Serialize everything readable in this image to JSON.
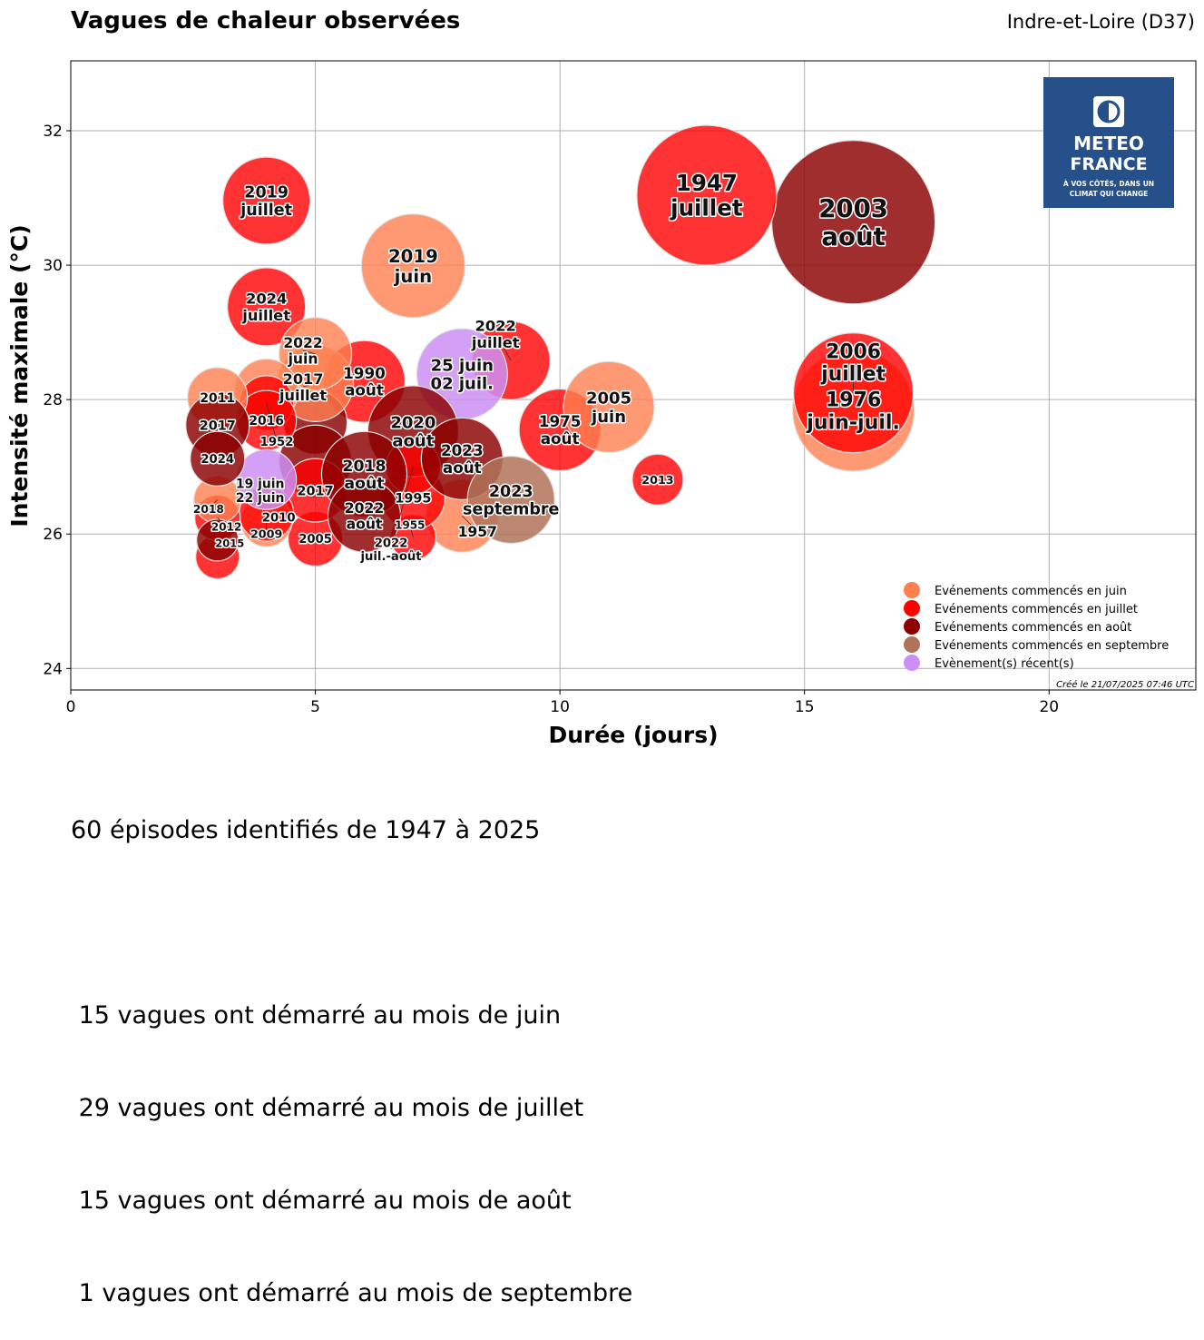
{
  "header": {
    "title": "Vagues de chaleur observées",
    "department": "Indre-et-Loire (D37)"
  },
  "logo": {
    "line1": "METEO",
    "line2": "FRANCE",
    "tagline1": "À VOS CÔTÉS, DANS UN",
    "tagline2": "CLIMAT QUI CHANGE",
    "bg": "#265089"
  },
  "created": "Créé le 21/07/2025 07:46 UTC",
  "summary": {
    "headline": "60 épisodes identifiés de 1947 à 2025",
    "lines": [
      " 15 vagues ont démarré au mois de juin",
      " 29 vagues ont démarré au mois de juillet",
      " 15 vagues ont démarré au mois de août",
      " 1 vagues ont démarré au mois de septembre"
    ]
  },
  "chart_data": {
    "type": "scatter",
    "subtype": "bubble",
    "xlabel": "Durée (jours)",
    "ylabel": "Intensité maximale (°C)",
    "xlim": [
      0,
      23
    ],
    "ylim": [
      23.68,
      33.04
    ],
    "xticks": [
      0,
      5,
      10,
      15,
      20
    ],
    "yticks": [
      24,
      26,
      28,
      30,
      32
    ],
    "grid": true,
    "legend_position": "bottom-right",
    "categories": {
      "juin": {
        "label": "Evénements commencés en juin",
        "color": "#ff7f50"
      },
      "juillet": {
        "label": "Evénements commencés en juillet",
        "color": "#ff0000"
      },
      "aout": {
        "label": "Evénements commencés en août",
        "color": "#8b0000"
      },
      "septembre": {
        "label": "Evénements commencés en septembre",
        "color": "#b07359"
      },
      "recent": {
        "label": "Evènement(s) récent(s)",
        "color": "#cc8ff5"
      }
    },
    "legend_order": [
      "juin",
      "juillet",
      "aout",
      "septembre",
      "recent"
    ],
    "points": [
      {
        "x": 16,
        "y": 27.84,
        "severity": 6.7,
        "cat": "juin",
        "label": [
          "1976",
          "juin-juil."
        ]
      },
      {
        "x": 16,
        "y": 30.64,
        "severity": 9.0,
        "cat": "aout",
        "label": [
          "2003",
          "août"
        ]
      },
      {
        "x": 13,
        "y": 31.04,
        "severity": 7.7,
        "cat": "juillet",
        "label": [
          "1947",
          "juillet"
        ]
      },
      {
        "x": 16,
        "y": 28.1,
        "severity": 6.6,
        "cat": "juillet",
        "label": [
          "2006",
          "juillet"
        ]
      },
      {
        "x": 4,
        "y": 30.96,
        "severity": 4.8,
        "cat": "juillet",
        "label": [
          "2019",
          "juillet"
        ]
      },
      {
        "x": 7,
        "y": 29.99,
        "severity": 5.7,
        "cat": "juin",
        "label": [
          "2019",
          "juin"
        ]
      },
      {
        "x": 4,
        "y": 29.38,
        "severity": 4.3,
        "cat": "juillet",
        "label": [
          "2024",
          "juillet"
        ]
      },
      {
        "x": 6,
        "y": 28.27,
        "severity": 4.5,
        "cat": "juillet",
        "label": [
          "1990",
          "août"
        ]
      },
      {
        "x": 5,
        "y": 27.66,
        "severity": 3.5,
        "cat": "aout",
        "label": []
      },
      {
        "x": 5,
        "y": 28.24,
        "severity": 4.2,
        "cat": "juin",
        "label": [
          "2017",
          "juillet"
        ]
      },
      {
        "x": 5,
        "y": 28.68,
        "severity": 4.0,
        "cat": "juin",
        "label": [
          "2022",
          "juin"
        ]
      },
      {
        "x": 9,
        "y": 28.58,
        "severity": 4.3,
        "cat": "juillet",
        "label": [
          "2022",
          "juillet"
        ]
      },
      {
        "x": 8,
        "y": 28.38,
        "severity": 5.0,
        "cat": "recent",
        "label": [
          "25 juin",
          "02 juil."
        ]
      },
      {
        "x": 10,
        "y": 27.55,
        "severity": 4.5,
        "cat": "juillet",
        "label": [
          "1975",
          "août"
        ]
      },
      {
        "x": 11,
        "y": 27.89,
        "severity": 5.0,
        "cat": "juin",
        "label": [
          "2005",
          "juin"
        ]
      },
      {
        "x": 12,
        "y": 26.81,
        "severity": 2.8,
        "cat": "juillet",
        "label": [
          "2013"
        ]
      },
      {
        "x": 8,
        "y": 26.27,
        "severity": 4.0,
        "cat": "juin",
        "label": [
          "1957"
        ]
      },
      {
        "x": 7,
        "y": 25.95,
        "severity": 2.5,
        "cat": "juillet",
        "label": [
          "1955"
        ]
      },
      {
        "x": 7,
        "y": 26.54,
        "severity": 3.5,
        "cat": "juillet",
        "label": [
          "1995"
        ]
      },
      {
        "x": 7,
        "y": 27.53,
        "severity": 5.0,
        "cat": "aout",
        "label": [
          "2020",
          "août"
        ]
      },
      {
        "x": 7,
        "y": 27.0,
        "severity": 3.0,
        "cat": "juillet",
        "label": [
          "2022",
          "juil.-août"
        ]
      },
      {
        "x": 8,
        "y": 27.12,
        "severity": 4.5,
        "cat": "aout",
        "label": [
          "2023",
          "août"
        ]
      },
      {
        "x": 9,
        "y": 26.51,
        "severity": 4.8,
        "cat": "septembre",
        "label": [
          "2023",
          "septembre"
        ]
      },
      {
        "x": 5,
        "y": 25.93,
        "severity": 3.0,
        "cat": "juillet",
        "label": [
          "2005"
        ]
      },
      {
        "x": 5,
        "y": 27.08,
        "severity": 4.0,
        "cat": "aout",
        "label": []
      },
      {
        "x": 5,
        "y": 26.65,
        "severity": 3.5,
        "cat": "juillet",
        "label": [
          "2017"
        ]
      },
      {
        "x": 6,
        "y": 26.89,
        "severity": 4.7,
        "cat": "aout",
        "label": [
          "2018",
          "août"
        ]
      },
      {
        "x": 6,
        "y": 26.27,
        "severity": 4.0,
        "cat": "aout",
        "label": [
          "2022",
          "août"
        ]
      },
      {
        "x": 4,
        "y": 28.13,
        "severity": 3.5,
        "cat": "juin",
        "label": []
      },
      {
        "x": 4,
        "y": 27.95,
        "severity": 3.0,
        "cat": "juillet",
        "label": [
          "1952"
        ]
      },
      {
        "x": 4,
        "y": 27.69,
        "severity": 3.3,
        "cat": "juillet",
        "label": [
          "2016"
        ]
      },
      {
        "x": 4,
        "y": 26.19,
        "severity": 2.8,
        "cat": "juin",
        "label": [
          "2009"
        ]
      },
      {
        "x": 4,
        "y": 26.3,
        "severity": 3.0,
        "cat": "juillet",
        "label": [
          "2010"
        ]
      },
      {
        "x": 4,
        "y": 26.81,
        "severity": 3.3,
        "cat": "recent",
        "label": [
          "19 juin",
          "22 juin"
        ]
      },
      {
        "x": 3,
        "y": 25.66,
        "severity": 2.4,
        "cat": "juillet",
        "label": []
      },
      {
        "x": 3,
        "y": 28.03,
        "severity": 3.3,
        "cat": "juin",
        "label": [
          "2011"
        ]
      },
      {
        "x": 3,
        "y": 27.62,
        "severity": 3.5,
        "cat": "aout",
        "label": [
          "2017"
        ]
      },
      {
        "x": 3,
        "y": 26.24,
        "severity": 2.5,
        "cat": "juillet",
        "label": [
          "2012"
        ]
      },
      {
        "x": 3,
        "y": 26.51,
        "severity": 2.6,
        "cat": "juin",
        "label": [
          "2018"
        ]
      },
      {
        "x": 3,
        "y": 27.12,
        "severity": 3.0,
        "cat": "aout",
        "label": [
          "2024"
        ]
      },
      {
        "x": 3,
        "y": 25.91,
        "severity": 2.3,
        "cat": "aout",
        "label": [
          "2015"
        ]
      }
    ]
  }
}
